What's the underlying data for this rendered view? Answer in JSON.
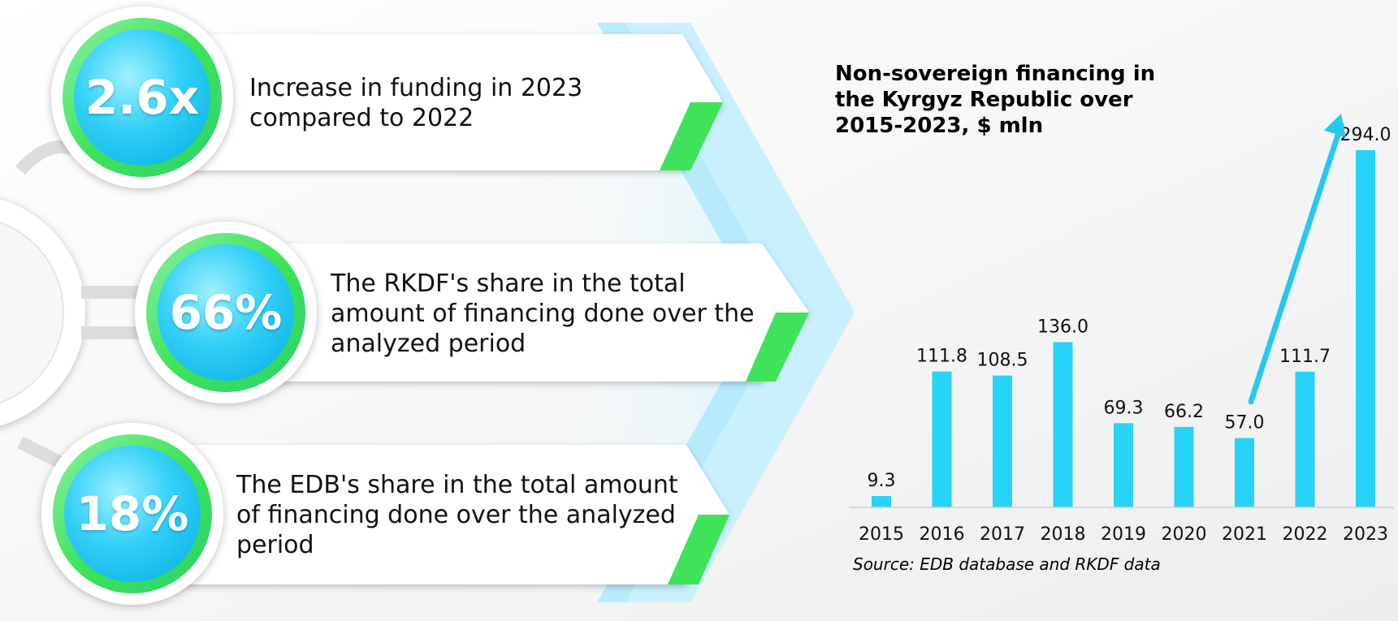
{
  "stats": [
    {
      "value": "2.6x",
      "text": "Increase in funding in 2023 compared to 2022"
    },
    {
      "value": "66%",
      "text": "The RKDF's share in the total amount of financing done over the analyzed period"
    },
    {
      "value": "18%",
      "text": "The EDB's share in the total amount of financing done over the analyzed period"
    }
  ],
  "colors": {
    "bar": "#27d3f6",
    "arrow": "#27c8f0",
    "green": "#3fe35a",
    "circle_inner": "#33d0f7",
    "chevron": "#b8ecfb"
  },
  "chart_data": {
    "type": "bar",
    "title": "Non-sovereign financing in the Kyrgyz Republic over 2015-2023, $ mln",
    "categories": [
      "2015",
      "2016",
      "2017",
      "2018",
      "2019",
      "2020",
      "2021",
      "2022",
      "2023"
    ],
    "values": [
      9.3,
      111.8,
      108.5,
      136.0,
      69.3,
      66.2,
      57.0,
      111.7,
      294.0
    ],
    "data_labels": [
      "9.3",
      "111.8",
      "108.5",
      "136.0",
      "69.3",
      "66.2",
      "57.0",
      "111.7",
      "294.0"
    ],
    "xlabel": "",
    "ylabel": "",
    "ylim": [
      0,
      294
    ],
    "grid": false,
    "legend": "none",
    "annotation": "arrow from 2021 rising toward 2023"
  },
  "source": "Source: EDB database and RKDF data"
}
